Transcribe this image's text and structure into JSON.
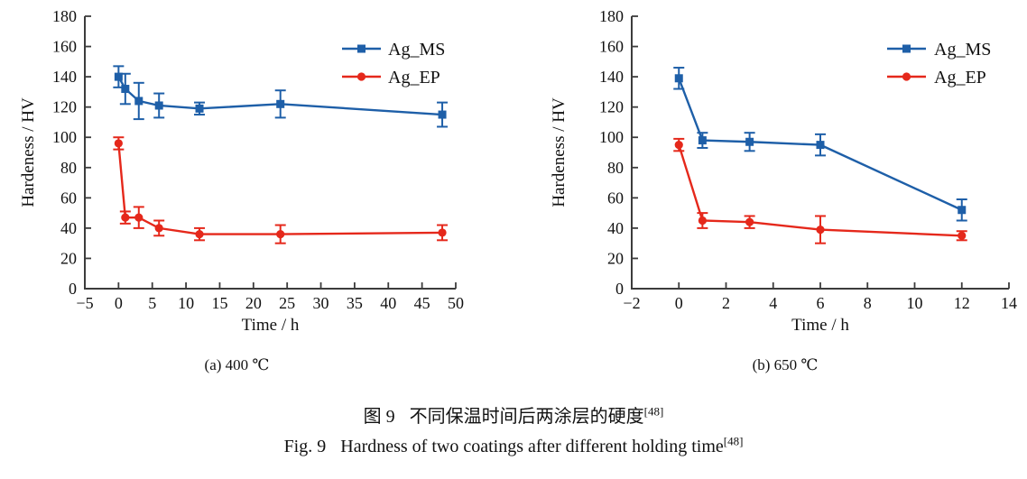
{
  "page": {
    "background": "#ffffff"
  },
  "colors": {
    "ag_ms_blue": "#1E5FA8",
    "ag_ep_red": "#E5281B",
    "axis": "#3C3C3C",
    "text": "#111111"
  },
  "figure_captions": {
    "zh_prefix": "图 9",
    "zh_text": "不同保温时间后两涂层的硬度",
    "zh_sup": "[48]",
    "en_prefix": "Fig. 9",
    "en_text": "Hardness of two coatings after different holding time",
    "en_sup": "[48]"
  },
  "chart_data": [
    {
      "type": "line",
      "title": "(a) 400 ℃",
      "xlabel": "Time / h",
      "ylabel": "Hardeness / HV",
      "xlim": [
        -5,
        50
      ],
      "xticks": [
        -5,
        0,
        5,
        10,
        15,
        20,
        25,
        30,
        35,
        40,
        45,
        50
      ],
      "ylim": [
        0,
        180
      ],
      "yticks": [
        0,
        20,
        40,
        60,
        80,
        100,
        120,
        140,
        160,
        180
      ],
      "grid": false,
      "legend_position": "upper right",
      "series": [
        {
          "name": "Ag_MS",
          "marker": "square",
          "color": "#1E5FA8",
          "x": [
            0,
            1,
            3,
            6,
            12,
            24,
            48
          ],
          "y": [
            140,
            132,
            124,
            121,
            119,
            122,
            115
          ],
          "yerr": [
            7,
            10,
            12,
            8,
            4,
            9,
            8
          ]
        },
        {
          "name": "Ag_EP",
          "marker": "circle",
          "color": "#E5281B",
          "x": [
            0,
            1,
            3,
            6,
            12,
            24,
            48
          ],
          "y": [
            96,
            47,
            47,
            40,
            36,
            36,
            37
          ],
          "yerr": [
            4,
            4,
            7,
            5,
            4,
            6,
            5
          ]
        }
      ]
    },
    {
      "type": "line",
      "title": "(b) 650 ℃",
      "xlabel": "Time / h",
      "ylabel": "Hardeness / HV",
      "xlim": [
        -2,
        14
      ],
      "xticks": [
        -2,
        0,
        2,
        4,
        6,
        8,
        10,
        12,
        14
      ],
      "ylim": [
        0,
        180
      ],
      "yticks": [
        0,
        20,
        40,
        60,
        80,
        100,
        120,
        140,
        160,
        180
      ],
      "grid": false,
      "legend_position": "upper right",
      "series": [
        {
          "name": "Ag_MS",
          "marker": "square",
          "color": "#1E5FA8",
          "x": [
            0,
            1,
            3,
            6,
            12
          ],
          "y": [
            139,
            98,
            97,
            95,
            52
          ],
          "yerr": [
            7,
            5,
            6,
            7,
            7
          ]
        },
        {
          "name": "Ag_EP",
          "marker": "circle",
          "color": "#E5281B",
          "x": [
            0,
            1,
            3,
            6,
            12
          ],
          "y": [
            95,
            45,
            44,
            39,
            35
          ],
          "yerr": [
            4,
            5,
            4,
            9,
            3
          ]
        }
      ]
    }
  ]
}
